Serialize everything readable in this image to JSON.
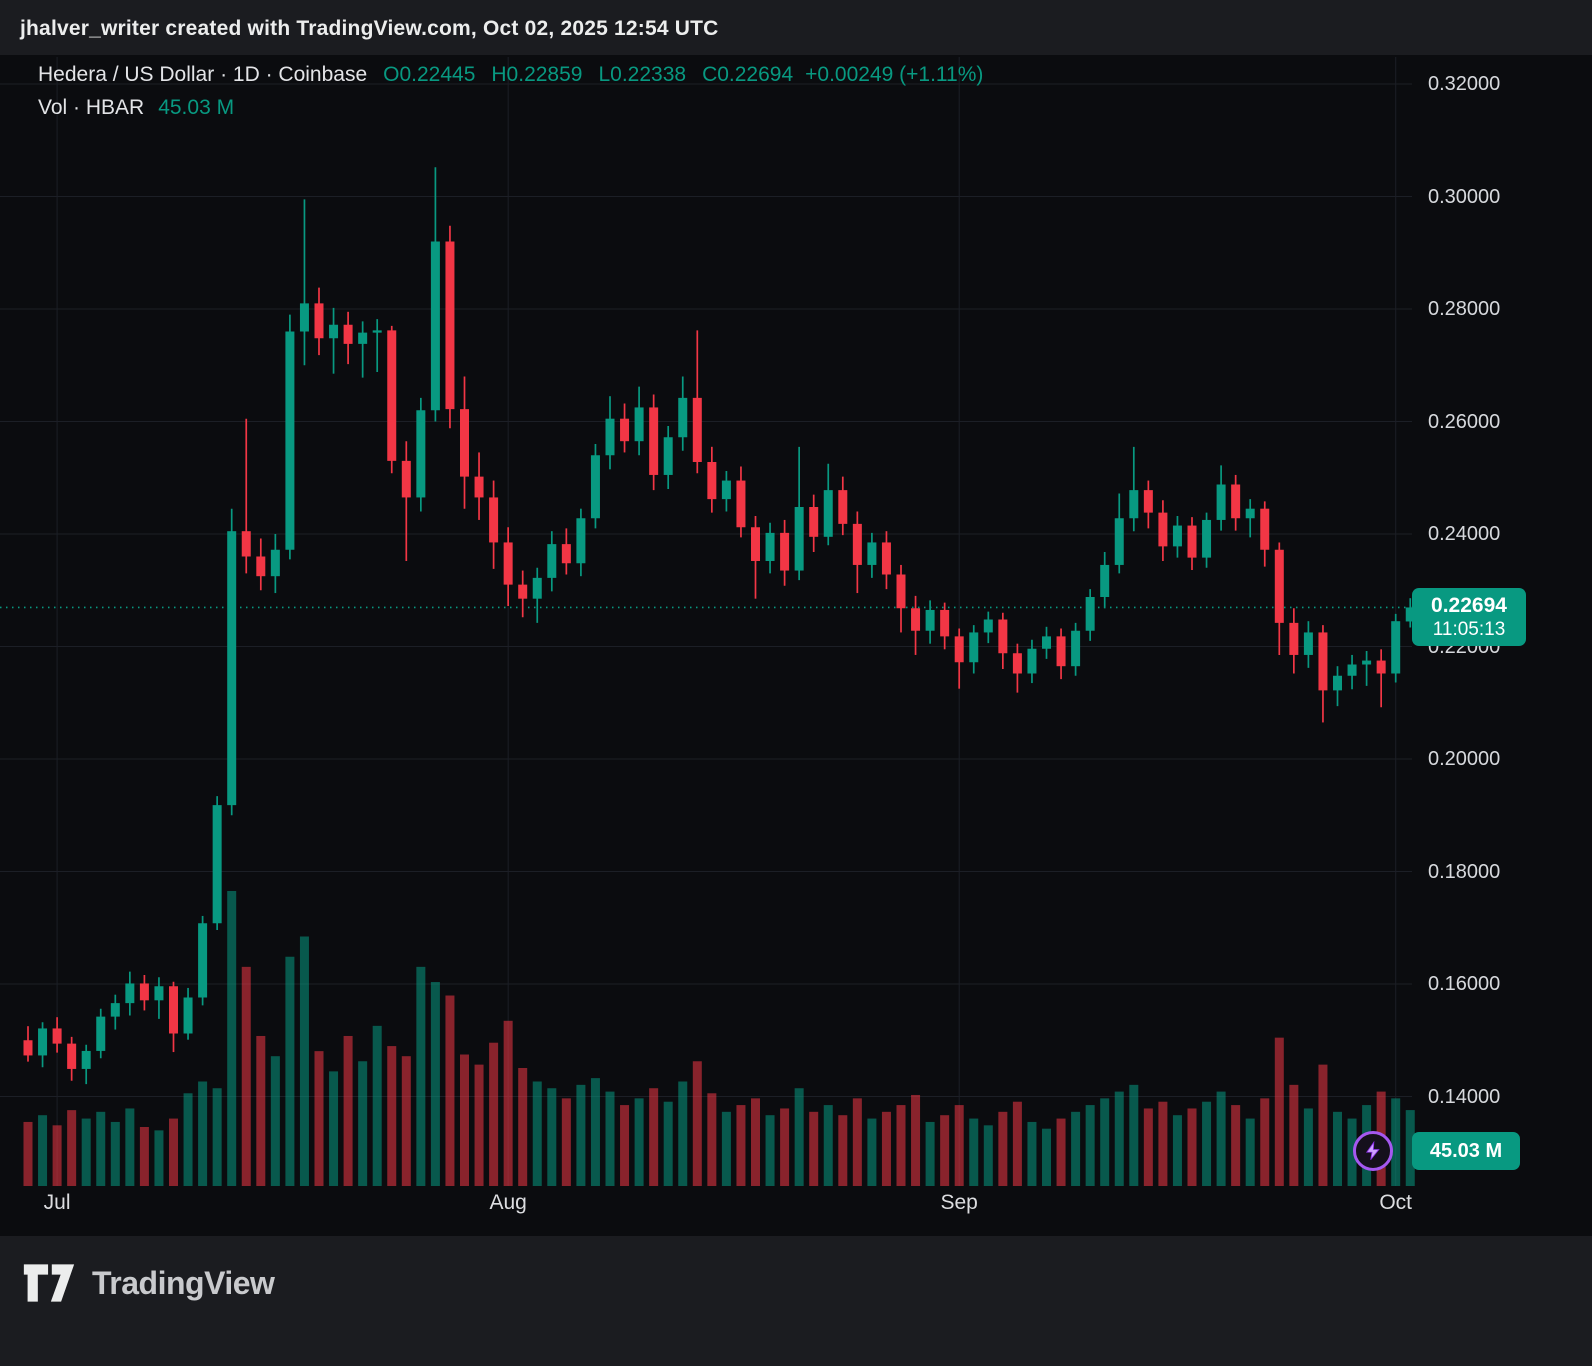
{
  "watermark": "jhalver_writer created with TradingView.com, Oct 02, 2025 12:54 UTC",
  "legend": {
    "title": "Hedera / US Dollar · 1D · Coinbase",
    "o": "O0.22445",
    "h": "H0.22859",
    "l": "L0.22338",
    "c": "C0.22694",
    "change": "+0.00249 (+1.11%)",
    "vol_label": "Vol · HBAR",
    "vol_value": "45.03 M"
  },
  "price_axis": {
    "labels": [
      "0.32000",
      "0.30000",
      "0.28000",
      "0.26000",
      "0.24000",
      "0.22000",
      "0.20000",
      "0.18000",
      "0.16000",
      "0.14000"
    ],
    "values": [
      0.32,
      0.3,
      0.28,
      0.26,
      0.24,
      0.22,
      0.2,
      0.18,
      0.16,
      0.14
    ]
  },
  "time_axis": {
    "labels": [
      "Jul",
      "Aug",
      "Sep",
      "Oct"
    ]
  },
  "last_price": {
    "value": "0.22694",
    "countdown": "11:05:13",
    "price": 0.22694
  },
  "volume_badge": {
    "value": "45.03 M"
  },
  "footer": {
    "brand": "TradingView"
  },
  "colors": {
    "up": "#089981",
    "down": "#F23645",
    "vol_up": "rgba(8,153,129,0.55)",
    "vol_down": "rgba(242,54,69,0.55)",
    "grid": "#1c1f26",
    "dotted_line": "#089981",
    "badge": "#089981",
    "accent_purple": "#a558f0",
    "chart_bg": "#0b0c0f",
    "page_bg": "#1b1c20"
  },
  "chart_data": {
    "type": "candlestick",
    "title": "Hedera / US Dollar",
    "symbol": "HBAR/USD",
    "exchange": "Coinbase",
    "interval": "1D",
    "ylim": [
      0.14,
      0.32
    ],
    "y_grid_step": 0.02,
    "grid": true,
    "last_price": 0.22694,
    "volume_unit": "M HBAR",
    "month_tick_indices": [
      2,
      33,
      64,
      94
    ],
    "columns": [
      "date",
      "open",
      "high",
      "low",
      "close",
      "volume_m"
    ],
    "candles": [
      [
        "2025-06-29",
        0.15,
        0.1525,
        0.1462,
        0.1473,
        38
      ],
      [
        "2025-06-30",
        0.1473,
        0.1532,
        0.1452,
        0.1521,
        42
      ],
      [
        "2025-07-01",
        0.1521,
        0.1541,
        0.1478,
        0.1494,
        36
      ],
      [
        "2025-07-02",
        0.1494,
        0.1506,
        0.1428,
        0.1449,
        45
      ],
      [
        "2025-07-03",
        0.1449,
        0.1492,
        0.1422,
        0.1481,
        40
      ],
      [
        "2025-07-04",
        0.1481,
        0.1556,
        0.1468,
        0.1542,
        44
      ],
      [
        "2025-07-05",
        0.1542,
        0.1581,
        0.1519,
        0.1566,
        38
      ],
      [
        "2025-07-06",
        0.1566,
        0.1622,
        0.1544,
        0.1601,
        46
      ],
      [
        "2025-07-07",
        0.1601,
        0.1616,
        0.1553,
        0.1571,
        35
      ],
      [
        "2025-07-08",
        0.1571,
        0.1612,
        0.1538,
        0.1596,
        33
      ],
      [
        "2025-07-09",
        0.1596,
        0.1604,
        0.1479,
        0.1512,
        40
      ],
      [
        "2025-07-10",
        0.1512,
        0.1593,
        0.1501,
        0.1576,
        55
      ],
      [
        "2025-07-11",
        0.1576,
        0.1721,
        0.1562,
        0.1708,
        62
      ],
      [
        "2025-07-12",
        0.1708,
        0.1934,
        0.1696,
        0.1918,
        58
      ],
      [
        "2025-07-13",
        0.1918,
        0.2445,
        0.19,
        0.2405,
        175
      ],
      [
        "2025-07-14",
        0.2405,
        0.2605,
        0.233,
        0.236,
        130
      ],
      [
        "2025-07-15",
        0.236,
        0.2392,
        0.23,
        0.2325,
        89
      ],
      [
        "2025-07-16",
        0.2325,
        0.24,
        0.2295,
        0.2372,
        77
      ],
      [
        "2025-07-17",
        0.2372,
        0.279,
        0.2355,
        0.276,
        136
      ],
      [
        "2025-07-18",
        0.276,
        0.2995,
        0.27,
        0.281,
        148
      ],
      [
        "2025-07-19",
        0.281,
        0.2838,
        0.2718,
        0.2748,
        80
      ],
      [
        "2025-07-20",
        0.2748,
        0.2802,
        0.2685,
        0.2772,
        68
      ],
      [
        "2025-07-21",
        0.2772,
        0.2795,
        0.2702,
        0.2738,
        89
      ],
      [
        "2025-07-22",
        0.2738,
        0.2778,
        0.2678,
        0.2758,
        74
      ],
      [
        "2025-07-23",
        0.2758,
        0.2782,
        0.2688,
        0.2762,
        95
      ],
      [
        "2025-07-24",
        0.2762,
        0.277,
        0.2508,
        0.253,
        83
      ],
      [
        "2025-07-25",
        0.253,
        0.2565,
        0.2352,
        0.2465,
        77
      ],
      [
        "2025-07-26",
        0.2465,
        0.2642,
        0.244,
        0.262,
        130
      ],
      [
        "2025-07-27",
        0.262,
        0.3052,
        0.26,
        0.292,
        121
      ],
      [
        "2025-07-28",
        0.292,
        0.2948,
        0.2588,
        0.2622,
        113
      ],
      [
        "2025-07-29",
        0.2622,
        0.268,
        0.2445,
        0.2502,
        78
      ],
      [
        "2025-07-30",
        0.2502,
        0.2545,
        0.2425,
        0.2465,
        72
      ],
      [
        "2025-07-31",
        0.2465,
        0.2495,
        0.2338,
        0.2385,
        85
      ],
      [
        "2025-08-01",
        0.2385,
        0.2412,
        0.2272,
        0.231,
        98
      ],
      [
        "2025-08-02",
        0.231,
        0.2335,
        0.2252,
        0.2285,
        70
      ],
      [
        "2025-08-03",
        0.2285,
        0.234,
        0.2242,
        0.2322,
        62
      ],
      [
        "2025-08-04",
        0.2322,
        0.2405,
        0.2298,
        0.2382,
        58
      ],
      [
        "2025-08-05",
        0.2382,
        0.241,
        0.2328,
        0.2348,
        52
      ],
      [
        "2025-08-06",
        0.2348,
        0.2445,
        0.2325,
        0.2428,
        60
      ],
      [
        "2025-08-07",
        0.2428,
        0.256,
        0.241,
        0.254,
        64
      ],
      [
        "2025-08-08",
        0.254,
        0.2645,
        0.2515,
        0.2605,
        56
      ],
      [
        "2025-08-09",
        0.2605,
        0.2632,
        0.2545,
        0.2565,
        48
      ],
      [
        "2025-08-10",
        0.2565,
        0.2662,
        0.254,
        0.2625,
        52
      ],
      [
        "2025-08-11",
        0.2625,
        0.2648,
        0.2478,
        0.2505,
        58
      ],
      [
        "2025-08-12",
        0.2505,
        0.2592,
        0.248,
        0.2572,
        50
      ],
      [
        "2025-08-13",
        0.2572,
        0.268,
        0.2548,
        0.2642,
        62
      ],
      [
        "2025-08-14",
        0.2642,
        0.2762,
        0.2508,
        0.2528,
        74
      ],
      [
        "2025-08-15",
        0.2528,
        0.2555,
        0.2438,
        0.2462,
        55
      ],
      [
        "2025-08-16",
        0.2462,
        0.2512,
        0.244,
        0.2495,
        44
      ],
      [
        "2025-08-17",
        0.2495,
        0.252,
        0.2394,
        0.2412,
        48
      ],
      [
        "2025-08-18",
        0.2412,
        0.2432,
        0.2285,
        0.2352,
        52
      ],
      [
        "2025-08-19",
        0.2352,
        0.242,
        0.233,
        0.2402,
        42
      ],
      [
        "2025-08-20",
        0.2402,
        0.2425,
        0.2308,
        0.2335,
        46
      ],
      [
        "2025-08-21",
        0.2335,
        0.2555,
        0.2318,
        0.2448,
        58
      ],
      [
        "2025-08-22",
        0.2448,
        0.247,
        0.2368,
        0.2395,
        44
      ],
      [
        "2025-08-23",
        0.2395,
        0.2525,
        0.238,
        0.2478,
        48
      ],
      [
        "2025-08-24",
        0.2478,
        0.2502,
        0.2398,
        0.2418,
        42
      ],
      [
        "2025-08-25",
        0.2418,
        0.244,
        0.2295,
        0.2345,
        52
      ],
      [
        "2025-08-26",
        0.2345,
        0.2402,
        0.2322,
        0.2385,
        40
      ],
      [
        "2025-08-27",
        0.2385,
        0.2405,
        0.2302,
        0.2328,
        44
      ],
      [
        "2025-08-28",
        0.2328,
        0.2345,
        0.2225,
        0.2268,
        48
      ],
      [
        "2025-08-29",
        0.2268,
        0.229,
        0.2185,
        0.2228,
        54
      ],
      [
        "2025-08-30",
        0.2228,
        0.2282,
        0.2205,
        0.2265,
        38
      ],
      [
        "2025-08-31",
        0.2265,
        0.2278,
        0.2195,
        0.2218,
        42
      ],
      [
        "2025-09-01",
        0.2218,
        0.2232,
        0.2125,
        0.2172,
        48
      ],
      [
        "2025-09-02",
        0.2172,
        0.2238,
        0.2152,
        0.2225,
        40
      ],
      [
        "2025-09-03",
        0.2225,
        0.2262,
        0.2206,
        0.2248,
        36
      ],
      [
        "2025-09-04",
        0.2248,
        0.226,
        0.216,
        0.2188,
        44
      ],
      [
        "2025-09-05",
        0.2188,
        0.2205,
        0.2118,
        0.2152,
        50
      ],
      [
        "2025-09-06",
        0.2152,
        0.2212,
        0.2135,
        0.2196,
        38
      ],
      [
        "2025-09-07",
        0.2196,
        0.2235,
        0.2178,
        0.2218,
        34
      ],
      [
        "2025-09-08",
        0.2218,
        0.2232,
        0.2142,
        0.2165,
        40
      ],
      [
        "2025-09-09",
        0.2165,
        0.2242,
        0.2148,
        0.2228,
        44
      ],
      [
        "2025-09-10",
        0.2228,
        0.2302,
        0.221,
        0.2288,
        48
      ],
      [
        "2025-09-11",
        0.2288,
        0.2368,
        0.2268,
        0.2345,
        52
      ],
      [
        "2025-09-12",
        0.2345,
        0.2472,
        0.233,
        0.2428,
        56
      ],
      [
        "2025-09-13",
        0.2428,
        0.2555,
        0.2405,
        0.2478,
        60
      ],
      [
        "2025-09-14",
        0.2478,
        0.2495,
        0.241,
        0.2438,
        46
      ],
      [
        "2025-09-15",
        0.2438,
        0.246,
        0.2352,
        0.2378,
        50
      ],
      [
        "2025-09-16",
        0.2378,
        0.2432,
        0.2358,
        0.2415,
        42
      ],
      [
        "2025-09-17",
        0.2415,
        0.243,
        0.2336,
        0.2358,
        46
      ],
      [
        "2025-09-18",
        0.2358,
        0.2438,
        0.234,
        0.2425,
        50
      ],
      [
        "2025-09-19",
        0.2425,
        0.2522,
        0.2406,
        0.2488,
        56
      ],
      [
        "2025-09-20",
        0.2488,
        0.2505,
        0.2406,
        0.2428,
        48
      ],
      [
        "2025-09-21",
        0.2428,
        0.2462,
        0.2394,
        0.2445,
        40
      ],
      [
        "2025-09-22",
        0.2445,
        0.2458,
        0.2342,
        0.2372,
        52
      ],
      [
        "2025-09-23",
        0.2372,
        0.2385,
        0.2185,
        0.2242,
        88
      ],
      [
        "2025-09-24",
        0.2242,
        0.2268,
        0.2152,
        0.2185,
        60
      ],
      [
        "2025-09-25",
        0.2185,
        0.2245,
        0.2162,
        0.2225,
        46
      ],
      [
        "2025-09-26",
        0.2225,
        0.2238,
        0.2065,
        0.2122,
        72
      ],
      [
        "2025-09-27",
        0.2122,
        0.2165,
        0.2094,
        0.2148,
        44
      ],
      [
        "2025-09-28",
        0.2148,
        0.2185,
        0.2124,
        0.2168,
        40
      ],
      [
        "2025-09-29",
        0.2168,
        0.2192,
        0.213,
        0.2175,
        48
      ],
      [
        "2025-09-30",
        0.2175,
        0.2195,
        0.2092,
        0.2152,
        56
      ],
      [
        "2025-10-01",
        0.2152,
        0.2258,
        0.2136,
        0.2245,
        52
      ],
      [
        "2025-10-02",
        0.22445,
        0.22859,
        0.22338,
        0.22694,
        45.03
      ]
    ]
  }
}
